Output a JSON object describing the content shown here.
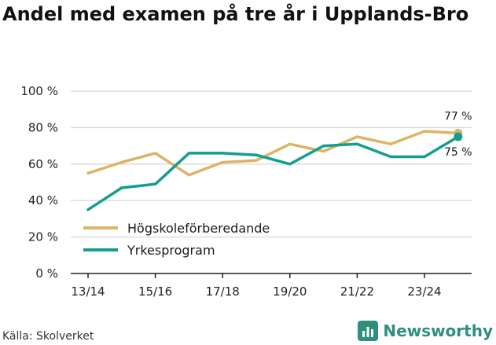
{
  "title": "Andel med examen på tre år i Upplands-Bro",
  "source": "Källa: Skolverket",
  "brand": "Newsworthy",
  "colors": {
    "hogskole": "#dcb467",
    "yrkes": "#139e90",
    "grid": "#dddddd",
    "brand": "#2f8f7f"
  },
  "chart_data": {
    "type": "line",
    "x": [
      "13/14",
      "14/15",
      "15/16",
      "16/17",
      "17/18",
      "18/19",
      "19/20",
      "20/21",
      "21/22",
      "22/23",
      "23/24",
      "24/25"
    ],
    "xticks": [
      "13/14",
      "15/16",
      "17/18",
      "19/20",
      "21/22",
      "23/24"
    ],
    "ylim": [
      0,
      100
    ],
    "yticks": [
      "0 %",
      "20 %",
      "40 %",
      "60 %",
      "80 %",
      "100 %"
    ],
    "grid": true,
    "legend": "bottom-left",
    "series": [
      {
        "name": "Högskoleförberedande",
        "values": [
          55,
          61,
          66,
          54,
          61,
          62,
          71,
          67,
          75,
          71,
          78,
          77
        ],
        "end_label": "77 %"
      },
      {
        "name": "Yrkesprogram",
        "values": [
          35,
          47,
          49,
          66,
          66,
          65,
          60,
          70,
          71,
          64,
          64,
          75
        ],
        "end_label": "75 %"
      }
    ]
  }
}
